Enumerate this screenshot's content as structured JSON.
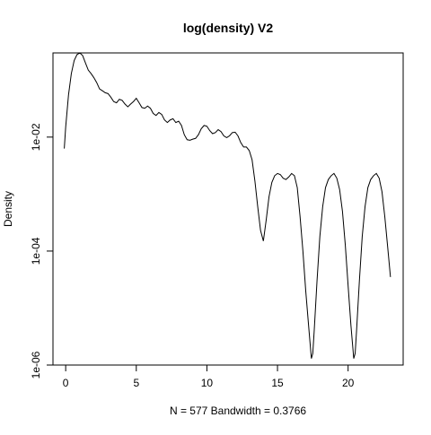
{
  "chart_data": {
    "type": "line",
    "title": "log(density) V2",
    "xlabel": "N = 577   Bandwidth = 0.3766",
    "ylabel": "Density",
    "x_scale": "linear",
    "y_scale": "log",
    "xlim": [
      -0.9,
      23.9
    ],
    "ylim": [
      1e-06,
      0.3
    ],
    "grid": false,
    "legend": "none",
    "x_ticks": [
      0,
      5,
      10,
      15,
      20
    ],
    "x_tick_labels": [
      "0",
      "5",
      "10",
      "15",
      "20"
    ],
    "y_ticks": [
      1e-06,
      0.0001,
      0.01
    ],
    "y_tick_labels": [
      "1e-06",
      "1e-04",
      "1e-02"
    ],
    "line_color": "#000000",
    "series": [
      {
        "x": [
          -0.1,
          0.0,
          0.2,
          0.4,
          0.6,
          0.8,
          1.0,
          1.2,
          1.4,
          1.6,
          1.8,
          2.0,
          2.2,
          2.4,
          2.6,
          2.8,
          3.0,
          3.2,
          3.4,
          3.6,
          3.8,
          4.0,
          4.2,
          4.4,
          4.6,
          4.8,
          5.0,
          5.2,
          5.4,
          5.6,
          5.8,
          6.0,
          6.2,
          6.4,
          6.6,
          6.8,
          7.0,
          7.2,
          7.4,
          7.6,
          7.8,
          8.0,
          8.2,
          8.4,
          8.6,
          8.8,
          9.0,
          9.2,
          9.4,
          9.6,
          9.8,
          10.0,
          10.2,
          10.4,
          10.6,
          10.8,
          11.0,
          11.2,
          11.4,
          11.6,
          11.8,
          12.0,
          12.2,
          12.4,
          12.6,
          12.8,
          13.0,
          13.2,
          13.4,
          13.6,
          13.8,
          14.0,
          14.2,
          14.4,
          14.6,
          14.8,
          15.0,
          15.2,
          15.4,
          15.6,
          15.8,
          16.0,
          16.2,
          16.4,
          16.6,
          16.8,
          17.0,
          17.2,
          17.4,
          17.5,
          17.6,
          17.8,
          18.0,
          18.2,
          18.4,
          18.6,
          18.8,
          19.0,
          19.2,
          19.4,
          19.6,
          19.8,
          20.0,
          20.2,
          20.4,
          20.5,
          20.6,
          20.8,
          21.0,
          21.2,
          21.4,
          21.6,
          21.8,
          22.0,
          22.2,
          22.4,
          22.6,
          22.8,
          23.0
        ],
        "y": [
          0.0063,
          0.015,
          0.055,
          0.13,
          0.22,
          0.28,
          0.3,
          0.27,
          0.2,
          0.15,
          0.13,
          0.11,
          0.09,
          0.07,
          0.065,
          0.06,
          0.058,
          0.05,
          0.042,
          0.04,
          0.046,
          0.044,
          0.038,
          0.034,
          0.038,
          0.042,
          0.048,
          0.04,
          0.033,
          0.032,
          0.035,
          0.032,
          0.026,
          0.024,
          0.027,
          0.025,
          0.02,
          0.018,
          0.02,
          0.021,
          0.018,
          0.019,
          0.016,
          0.011,
          0.009,
          0.0088,
          0.0092,
          0.0095,
          0.011,
          0.014,
          0.016,
          0.0155,
          0.013,
          0.0115,
          0.012,
          0.0135,
          0.0125,
          0.0105,
          0.0098,
          0.0105,
          0.012,
          0.0122,
          0.0105,
          0.008,
          0.0067,
          0.0067,
          0.0058,
          0.004,
          0.0017,
          0.0006,
          0.00023,
          0.00015,
          0.00035,
          0.0009,
          0.0016,
          0.0021,
          0.0023,
          0.0022,
          0.0019,
          0.0018,
          0.002,
          0.0023,
          0.0021,
          0.0013,
          0.0004,
          0.0001,
          2e-05,
          5e-06,
          1.3e-06,
          1.6e-06,
          4e-06,
          3e-05,
          0.00018,
          0.0006,
          0.0013,
          0.0018,
          0.0021,
          0.0023,
          0.0019,
          0.0012,
          0.0005,
          0.00013,
          2.5e-05,
          5e-06,
          1.3e-06,
          1.6e-06,
          4e-06,
          3e-05,
          0.00018,
          0.0006,
          0.0013,
          0.0018,
          0.0021,
          0.0023,
          0.0019,
          0.0011,
          0.0004,
          0.00012,
          3.5e-05
        ]
      }
    ]
  }
}
